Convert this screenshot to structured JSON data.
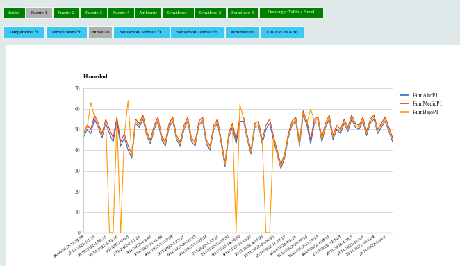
{
  "menu": [
    "Inicio",
    "Puente 1",
    "Puente 2",
    "Puente 3",
    "Puente 4",
    "Ambiente",
    "Semáforo 1",
    "Semáforo 2",
    "Semáforo 3",
    "Descargar Tabla a Excel"
  ],
  "menu_active": "Puente 1",
  "submenu": [
    "Temperatura °C",
    "Temperatura °F",
    "Humedad",
    "Sensación Térmica °C",
    "Sensación Térmica°F",
    "Iluminación",
    "Calidad de Aire"
  ],
  "submenu_active": "Humedad",
  "chart_data": {
    "type": "line",
    "title": "Humedad",
    "categories": [
      "26/10/2022-11:32:58",
      null,
      null,
      "27/10/2022-3:3:12",
      null,
      null,
      "28/10/2022-3:58:15",
      null,
      null,
      "30/10/2022-3:31:18",
      null,
      null,
      "1/11/2022-0:0:8",
      null,
      null,
      "2/11/2022-2:13:23",
      null,
      null,
      "3/11/2022-4:2:42",
      null,
      null,
      "3/11/2022-12:11:40",
      null,
      null,
      "4/11/2022-12:19:38",
      null,
      null,
      "5/11/2022-4:25:37",
      null,
      null,
      "6/11/2022-20:31:35",
      null,
      null,
      "6/11/2022-12:37:34",
      null,
      null,
      "7/11/2022-4:43:33",
      null,
      null,
      "7/11/2022-22:13:32",
      null,
      null,
      "8/11/2022-14:20:30",
      null,
      null,
      "9/11/2022-12:13:27",
      null,
      null,
      "10/11/2022-4:19:26",
      null,
      null,
      "10/11/2022-20:34:25",
      null,
      null,
      "11/11/2022-11:57:17",
      null,
      null,
      "14/11/2022-4:8:16",
      null,
      null,
      "15/11/2022-20:20:14",
      null,
      null,
      "15/11/2022-12:29:13",
      null,
      null,
      "16/11/2022-4:38:11",
      null,
      null,
      "17/11/2022-12:52:8",
      null,
      null,
      "18/11/2022-4:58:7",
      null,
      null,
      "19/11/2022-21:5:6",
      null,
      null,
      "19/11/2022-13:12:4",
      null,
      null,
      "20/11/2022-5:19:2",
      null,
      null
    ],
    "series": [
      {
        "name": "HumAltoP1",
        "color": "#3366cc",
        "values": [
          46,
          50,
          48,
          55,
          51,
          46,
          53,
          48,
          44,
          54,
          42,
          46,
          40,
          36,
          53,
          51,
          55,
          47,
          43,
          50,
          54,
          45,
          42,
          51,
          54,
          45,
          42,
          50,
          54,
          44,
          42,
          52,
          54,
          43,
          40,
          50,
          53,
          43,
          32,
          46,
          51,
          43,
          54,
          54,
          45,
          38,
          51,
          52,
          43,
          50,
          53,
          45,
          38,
          31,
          36,
          46,
          52,
          54,
          42,
          57,
          52,
          43,
          53,
          54,
          44,
          51,
          55,
          45,
          50,
          48,
          53,
          49,
          55,
          51,
          50,
          54,
          47,
          53,
          55,
          48,
          51,
          54,
          49,
          44
        ]
      },
      {
        "name": "HumMedioP1",
        "color": "#dc3912",
        "values": [
          48,
          52,
          50,
          57,
          53,
          48,
          55,
          50,
          46,
          56,
          44,
          48,
          42,
          38,
          55,
          53,
          57,
          49,
          45,
          52,
          56,
          47,
          44,
          53,
          56,
          47,
          44,
          52,
          56,
          46,
          44,
          54,
          56,
          45,
          42,
          52,
          55,
          45,
          34,
          48,
          53,
          45,
          56,
          56,
          47,
          40,
          53,
          54,
          45,
          52,
          55,
          47,
          40,
          33,
          38,
          48,
          54,
          56,
          44,
          59,
          54,
          45,
          55,
          56,
          46,
          53,
          57,
          47,
          52,
          50,
          55,
          51,
          57,
          53,
          52,
          56,
          49,
          55,
          57,
          50,
          53,
          56,
          51,
          46
        ]
      },
      {
        "name": "HumBajoP1",
        "color": "#ff9900",
        "values": [
          47,
          51,
          63,
          56,
          52,
          47,
          54,
          0,
          0,
          55,
          0,
          47,
          64,
          37,
          54,
          52,
          56,
          48,
          44,
          51,
          55,
          46,
          43,
          52,
          55,
          46,
          43,
          51,
          55,
          45,
          43,
          53,
          55,
          44,
          41,
          51,
          54,
          44,
          33,
          47,
          52,
          0,
          62,
          55,
          46,
          39,
          52,
          53,
          44,
          0,
          0,
          46,
          39,
          32,
          37,
          47,
          53,
          55,
          43,
          58,
          53,
          60,
          54,
          55,
          45,
          52,
          56,
          46,
          51,
          49,
          54,
          50,
          56,
          52,
          51,
          55,
          48,
          54,
          56,
          49,
          52,
          55,
          50,
          45
        ]
      }
    ],
    "ylim": [
      0,
      70
    ],
    "yticks": [
      0,
      10,
      20,
      30,
      40,
      50,
      60,
      70
    ],
    "grid": true,
    "legend": "right"
  }
}
